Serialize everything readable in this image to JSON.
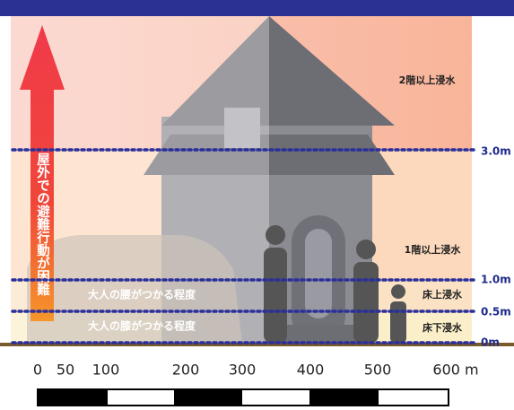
{
  "levels": [
    {
      "depth": "3.0m",
      "zone": "2階以上浸水"
    },
    {
      "depth": "1.0m",
      "zone": "1階以上浸水"
    },
    {
      "depth": "0.5m",
      "zone": "床上浸水"
    },
    {
      "depth": "0m",
      "zone": "床下浸水"
    }
  ],
  "band_notes": [
    "大人の腰がつかる程度",
    "大人の膝がつかる程度"
  ],
  "arrow_text": "屋外での避難行動が困難",
  "scale": {
    "labels": [
      "0",
      "50",
      "100",
      "200",
      "300",
      "400",
      "500",
      "600 m"
    ]
  }
}
